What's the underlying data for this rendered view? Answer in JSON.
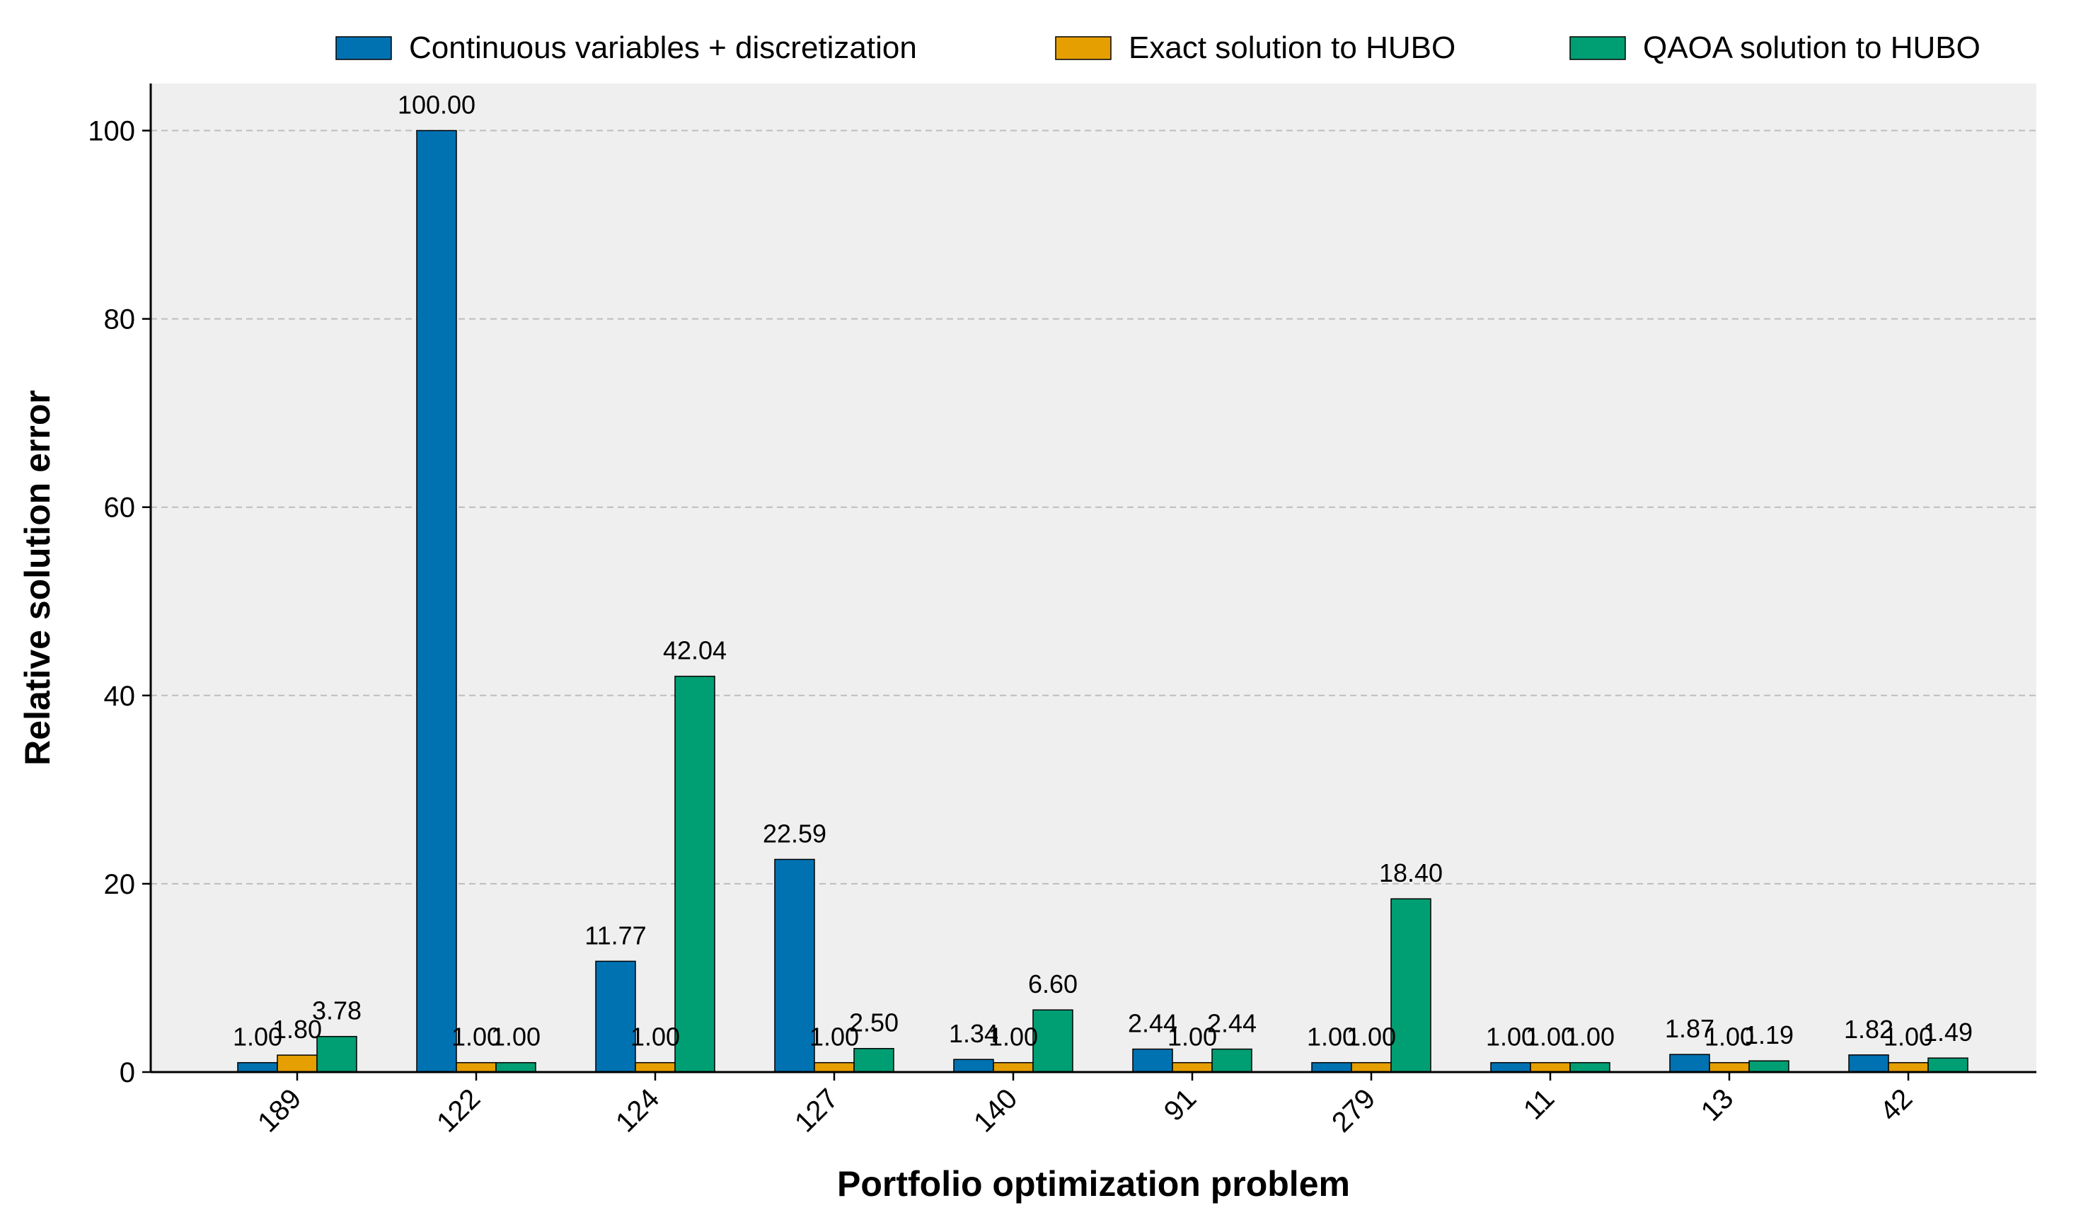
{
  "chart_data": {
    "type": "bar",
    "title": "",
    "xlabel": "Portfolio optimization problem",
    "ylabel": "Relative solution error",
    "ylim": [
      0,
      105
    ],
    "yticks": [
      0,
      20,
      40,
      60,
      80,
      100
    ],
    "grid": "y-dashed",
    "legend_position": "top",
    "categories": [
      "189",
      "122",
      "124",
      "127",
      "140",
      "91",
      "279",
      "11",
      "13",
      "42"
    ],
    "series": [
      {
        "name": "Continuous variables + discretization",
        "color": "#0072B2",
        "values": [
          1.0,
          100.0,
          11.77,
          22.59,
          1.34,
          2.44,
          1.0,
          1.0,
          1.87,
          1.82
        ],
        "labels": [
          "1.00",
          "100.00",
          "11.77",
          "22.59",
          "1.34",
          "2.44",
          "1.00",
          "1.00",
          "1.87",
          "1.82"
        ]
      },
      {
        "name": "Exact solution to HUBO",
        "color": "#E69F00",
        "values": [
          1.8,
          1.0,
          1.0,
          1.0,
          1.0,
          1.0,
          1.0,
          1.0,
          1.0,
          1.0
        ],
        "labels": [
          "1.80",
          "1.00",
          "1.00",
          "1.00",
          "1.00",
          "1.00",
          "1.00",
          "1.00",
          "1.00",
          "1.00"
        ]
      },
      {
        "name": "QAOA solution to HUBO",
        "color": "#009E73",
        "values": [
          3.78,
          1.0,
          42.04,
          2.5,
          6.6,
          2.44,
          18.4,
          1.0,
          1.19,
          1.49
        ],
        "labels": [
          "3.78",
          "1.00",
          "42.04",
          "2.50",
          "6.60",
          "2.44",
          "18.40",
          "1.00",
          "1.19",
          "1.49"
        ]
      }
    ]
  },
  "colors": {
    "plot_background": "#efefef",
    "grid": "#bdbdbd",
    "axis": "#000000"
  }
}
